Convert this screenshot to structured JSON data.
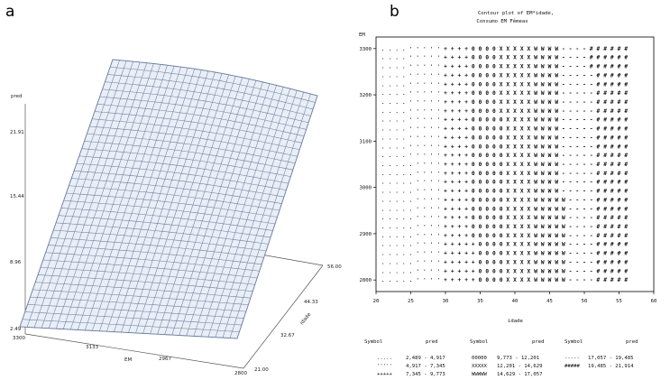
{
  "panel_a": {
    "letter": "a",
    "zlabel": "pred",
    "xlabel": "EM",
    "ylabel": "idade",
    "zticks": [
      "21.91",
      "15.44",
      "8.96",
      "2.49"
    ],
    "xticks": [
      "3300",
      "3133",
      "2967",
      "2800"
    ],
    "yticks": [
      "56.00",
      "44.33",
      "32.67",
      "21.00"
    ],
    "colors": {
      "surface": "#e9eef7",
      "mesh": "#6d7f9e",
      "axes": "#555555"
    }
  },
  "panel_b": {
    "letter": "b",
    "title_line1": "Contour plot of EM*idade,",
    "title_line2": "Consumo EM Fêmeas",
    "ylabel": "EM",
    "xlabel": "idade",
    "yticks": [
      "3300",
      "3200",
      "3100",
      "3000",
      "2900",
      "2800"
    ],
    "xticks": [
      "20",
      "25",
      "30",
      "35",
      "40",
      "45",
      "50",
      "55",
      "60"
    ],
    "legend": {
      "headers": [
        "Symbol",
        "pred",
        "Symbol",
        "pred",
        "Symbol",
        "pred"
      ],
      "rows": [
        [
          ".....",
          "2,489 - 4,917",
          "00000",
          "9,773 - 12,201",
          "-----",
          "17,057 - 19,485"
        ],
        [
          "'''''",
          "4,917 - 7,345",
          "XXXXX",
          "12,201 - 14,629",
          "#####",
          "19,485 - 21,914"
        ],
        [
          "+++++",
          "7,345 - 9,773",
          "WWWWW",
          "14,629 - 17,057",
          "",
          ""
        ]
      ]
    }
  },
  "chart_data": [
    {
      "type": "surface",
      "zlabel": "pred",
      "xlabel": "EM",
      "ylabel": "idade",
      "x_range": [
        2800,
        3300
      ],
      "y_range": [
        21,
        56
      ],
      "z_range": [
        2.49,
        21.91
      ],
      "corners": [
        {
          "EM": 3300,
          "idade": 21,
          "pred": 2.49
        },
        {
          "EM": 2800,
          "idade": 21,
          "pred": 2.49
        },
        {
          "EM": 2800,
          "idade": 56,
          "pred": 21.91
        },
        {
          "EM": 3300,
          "idade": 56,
          "pred": 21.91
        }
      ]
    },
    {
      "type": "heatmap",
      "title": "Contour plot of EM*idade,",
      "subtitle": "Consumo EM Fêmeas",
      "xlabel": "idade",
      "ylabel": "EM",
      "xlim": [
        20,
        60
      ],
      "ylim": [
        2775,
        3325
      ],
      "x_range_data": [
        21,
        56
      ],
      "y_range_data": [
        2800,
        3300
      ],
      "levels": [
        {
          "symbol": ".....",
          "range": [
            2.489,
            4.917
          ]
        },
        {
          "symbol": "'''''",
          "range": [
            4.917,
            7.345
          ]
        },
        {
          "symbol": "+++++",
          "range": [
            7.345,
            9.773
          ]
        },
        {
          "symbol": "00000",
          "range": [
            9.773,
            12.201
          ]
        },
        {
          "symbol": "XXXXX",
          "range": [
            12.201,
            14.629
          ]
        },
        {
          "symbol": "WWWWW",
          "range": [
            14.629,
            17.057
          ]
        },
        {
          "symbol": "-----",
          "range": [
            17.057,
            19.485
          ]
        },
        {
          "symbol": "#####",
          "range": [
            19.485,
            21.914
          ]
        }
      ]
    }
  ]
}
